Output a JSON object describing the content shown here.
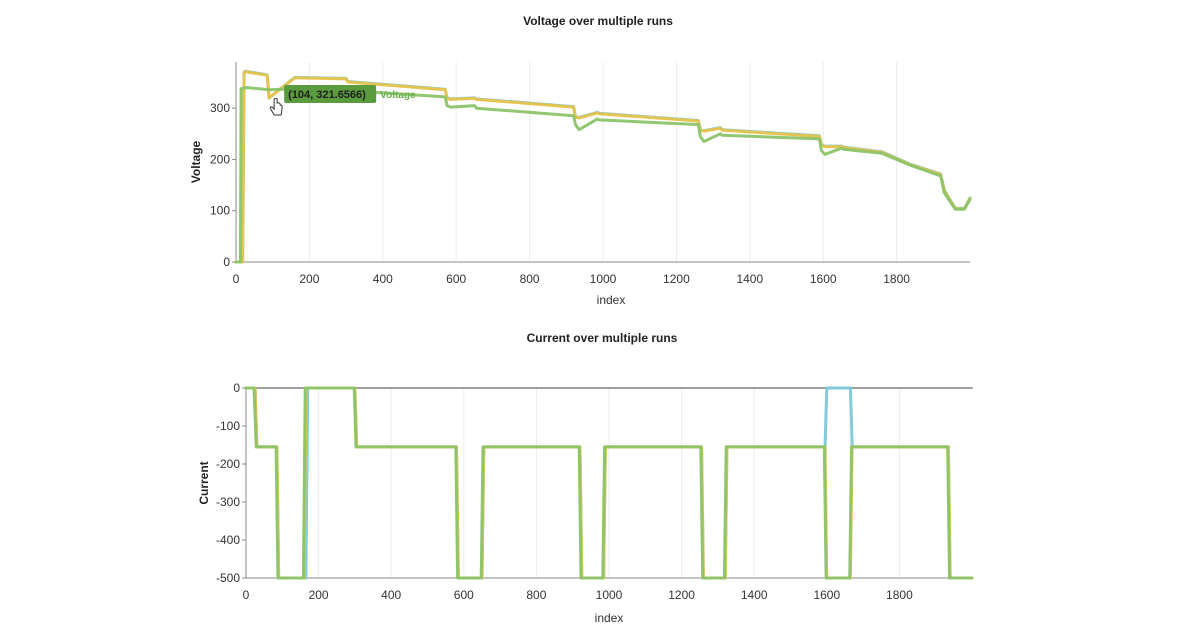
{
  "chart_data": [
    {
      "type": "line",
      "title": "Voltage over multiple runs",
      "xlabel": "index",
      "ylabel": "Voltage",
      "xlim": [
        0,
        2000
      ],
      "ylim": [
        0,
        390
      ],
      "xticks": [
        0,
        200,
        400,
        600,
        800,
        1000,
        1200,
        1400,
        1600,
        1800
      ],
      "yticks": [
        0,
        100,
        200,
        300
      ],
      "grid": true,
      "tooltip": {
        "text": "(104, 321.6566)",
        "series": "Voltage",
        "x": 104,
        "y": 321.6566
      },
      "series": [
        {
          "color": "#7cc7d9",
          "x": [
            0,
            18,
            22,
            25,
            85,
            90,
            160,
            165,
            300,
            305,
            570,
            575,
            585,
            650,
            655,
            920,
            925,
            935,
            985,
            990,
            1260,
            1265,
            1275,
            1320,
            1325,
            1590,
            1595,
            1605,
            1650,
            1655,
            1760,
            1840,
            1920,
            1930,
            1960,
            1985,
            2000
          ],
          "y": [
            0,
            0,
            370,
            372,
            365,
            320,
            360,
            360,
            358,
            352,
            337,
            320,
            318,
            320,
            318,
            303,
            283,
            282,
            292,
            290,
            276,
            258,
            256,
            262,
            258,
            246,
            228,
            226,
            226,
            224,
            215,
            190,
            172,
            140,
            105,
            105,
            125
          ]
        },
        {
          "color": "#e8c34a",
          "x": [
            0,
            18,
            22,
            25,
            85,
            90,
            160,
            165,
            300,
            305,
            570,
            575,
            585,
            650,
            655,
            920,
            925,
            935,
            985,
            990,
            1260,
            1265,
            1275,
            1320,
            1325,
            1590,
            1595,
            1605,
            1650,
            1655,
            1760,
            1840,
            1920,
            1930,
            1960,
            1985,
            2000
          ],
          "y": [
            0,
            0,
            369,
            371,
            364,
            320,
            359,
            359,
            357,
            351,
            336,
            319,
            317,
            319,
            317,
            302,
            282,
            281,
            291,
            289,
            275,
            257,
            255,
            261,
            257,
            245,
            227,
            225,
            225,
            223,
            214,
            189,
            171,
            139,
            104,
            104,
            124
          ]
        },
        {
          "color": "#8cc46a",
          "x": [
            0,
            12,
            14,
            30,
            90,
            160,
            165,
            300,
            305,
            570,
            575,
            585,
            650,
            655,
            920,
            925,
            935,
            985,
            990,
            1260,
            1265,
            1275,
            1320,
            1325,
            1590,
            1595,
            1605,
            1650,
            1655,
            1760,
            1840,
            1920,
            1930,
            1960,
            1985,
            2000
          ],
          "y": [
            0,
            0,
            338,
            340,
            336,
            338,
            338,
            340,
            334,
            322,
            305,
            302,
            305,
            300,
            285,
            268,
            258,
            279,
            277,
            268,
            245,
            235,
            250,
            247,
            240,
            217,
            210,
            222,
            220,
            212,
            188,
            168,
            135,
            103,
            103,
            122
          ]
        }
      ]
    },
    {
      "type": "line",
      "title": "Current over multiple runs",
      "xlabel": "index",
      "ylabel": "Current",
      "xlim": [
        0,
        2000
      ],
      "ylim": [
        -500,
        0
      ],
      "xticks": [
        0,
        200,
        400,
        600,
        800,
        1000,
        1200,
        1400,
        1600,
        1800
      ],
      "yticks": [
        0,
        -100,
        -200,
        -300,
        -400,
        -500
      ],
      "grid": true,
      "series": [
        {
          "color": "#9a9a9a",
          "x": [
            0,
            2000
          ],
          "y": [
            0,
            0
          ]
        },
        {
          "color": "#7cc7d9",
          "x": [
            0,
            25,
            30,
            85,
            90,
            95,
            160,
            165,
            170,
            300,
            305,
            580,
            585,
            650,
            655,
            920,
            925,
            985,
            990,
            1255,
            1260,
            1320,
            1325,
            1595,
            1600,
            1665,
            1670,
            1935,
            1940,
            2000
          ],
          "y": [
            0,
            0,
            -155,
            -155,
            -500,
            -500,
            -500,
            -500,
            0,
            0,
            -155,
            -155,
            -500,
            -500,
            -155,
            -155,
            -500,
            -500,
            -155,
            -155,
            -500,
            -500,
            -155,
            -155,
            0,
            0,
            -155,
            -155,
            -500,
            -500
          ]
        },
        {
          "color": "#e8c34a",
          "x": [
            0,
            25,
            30,
            85,
            90,
            160,
            165,
            300,
            305,
            580,
            585,
            650,
            655,
            920,
            925,
            985,
            990,
            1255,
            1260,
            1320,
            1325,
            1595,
            1600,
            1665,
            1670,
            1935,
            1940,
            2000
          ],
          "y": [
            0,
            0,
            -155,
            -155,
            -500,
            -500,
            0,
            0,
            -155,
            -155,
            -500,
            -500,
            -155,
            -155,
            -500,
            -500,
            -155,
            -155,
            -500,
            -500,
            -155,
            -155,
            -500,
            -500,
            -155,
            -155,
            -500,
            -500
          ]
        },
        {
          "color": "#8cc46a",
          "x": [
            0,
            22,
            28,
            83,
            88,
            158,
            163,
            298,
            303,
            578,
            583,
            648,
            653,
            918,
            923,
            983,
            988,
            1253,
            1258,
            1318,
            1323,
            1593,
            1598,
            1663,
            1668,
            1933,
            1938,
            2000
          ],
          "y": [
            0,
            0,
            -155,
            -155,
            -500,
            -500,
            0,
            0,
            -155,
            -155,
            -500,
            -500,
            -155,
            -155,
            -500,
            -500,
            -155,
            -155,
            -500,
            -500,
            -155,
            -155,
            -500,
            -500,
            -155,
            -155,
            -500,
            -500
          ]
        }
      ]
    }
  ]
}
